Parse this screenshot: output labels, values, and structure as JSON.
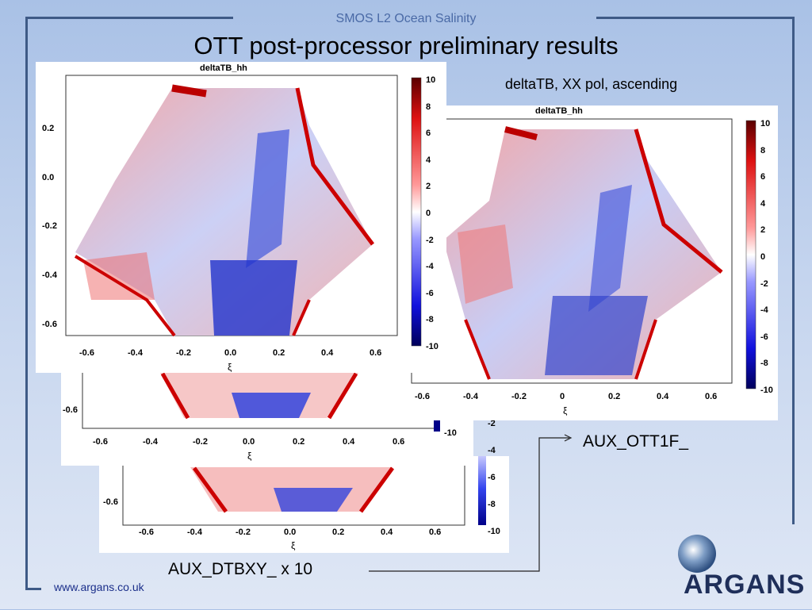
{
  "slide": {
    "subtitle": "SMOS L2 Ocean Salinity",
    "title": "OTT post-processor preliminary results",
    "annotations": {
      "pol": "deltaTB, XX pol, ascending",
      "ott": "AUX_OTT1F_",
      "dtbxy": "AUX_DTBXY_ x 10"
    },
    "footer_url": "www.argans.co.uk",
    "logo_text": "ARGANS"
  },
  "plots": {
    "front_left": {
      "title": "deltaTB_hh",
      "xlabel": "ξ",
      "x_ticks": [
        "-0.6",
        "-0.4",
        "-0.2",
        "0.0",
        "0.2",
        "0.4",
        "0.6"
      ],
      "y_ticks": [
        "0.2",
        "0.0",
        "-0.2",
        "-0.4",
        "-0.6"
      ],
      "cbar_ticks": [
        "10",
        "8",
        "6",
        "4",
        "2",
        "0",
        "-2",
        "-4",
        "-6",
        "-8",
        "-10"
      ]
    },
    "right": {
      "title": "deltaTB_hh",
      "xlabel": "ξ",
      "x_ticks": [
        "-0.6",
        "-0.4",
        "-0.2",
        "0",
        "0.2",
        "0.4",
        "0.6"
      ],
      "cbar_ticks": [
        "10",
        "8",
        "6",
        "4",
        "2",
        "0",
        "-2",
        "-4",
        "-6",
        "-8",
        "-10"
      ]
    },
    "middle": {
      "xlabel": "ξ",
      "x_ticks": [
        "-0.6",
        "-0.4",
        "-0.2",
        "0.0",
        "0.2",
        "0.4",
        "0.6"
      ],
      "y_ticks": [
        "-0.6"
      ],
      "cbar_ticks": [
        "-10"
      ]
    },
    "back": {
      "xlabel": "ξ",
      "x_ticks": [
        "-0.6",
        "-0.4",
        "-0.2",
        "0.0",
        "0.2",
        "0.4",
        "0.6"
      ],
      "y_ticks": [
        "-0.6"
      ],
      "cbar_ticks": [
        "-2",
        "-4",
        "-6",
        "-8",
        "-10"
      ]
    }
  },
  "colors": {
    "frame": "#3e5a86",
    "subtitle": "#4a6aa6",
    "link": "#1b2f8a",
    "red": "#cc1111",
    "blue": "#1122cc"
  }
}
